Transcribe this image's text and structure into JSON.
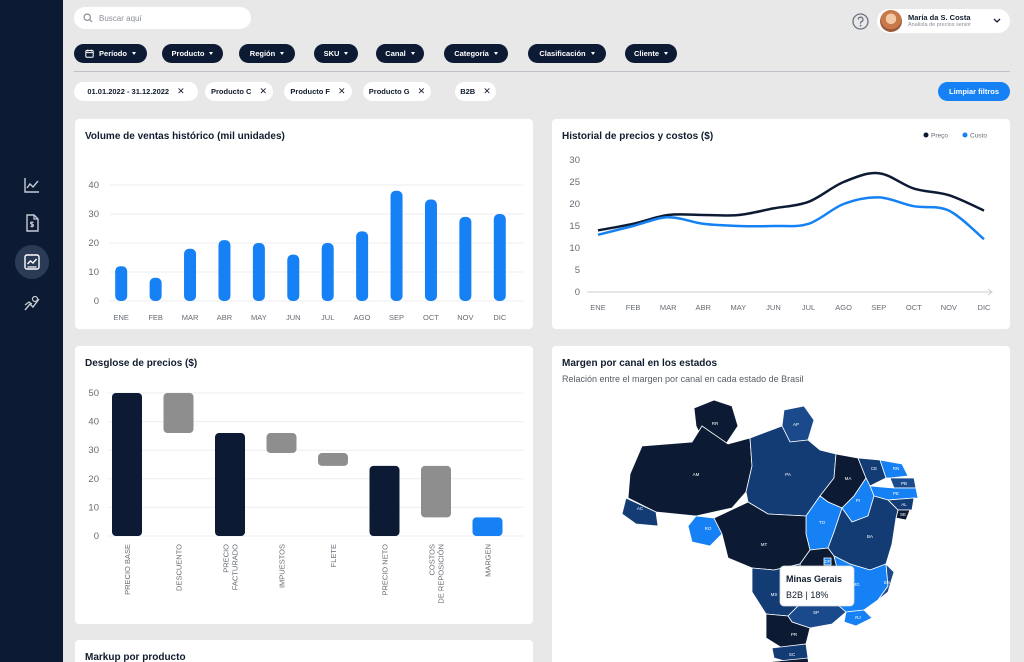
{
  "search": {
    "placeholder": "Buscar aquí",
    "icon": "search-icon"
  },
  "user": {
    "name": "María da S. Costa",
    "role": "Analista de precios senior"
  },
  "sidebar": {
    "items": [
      {
        "icon": "line-chart-icon",
        "active": false
      },
      {
        "icon": "invoice-icon",
        "active": false
      },
      {
        "icon": "trend-chart-icon",
        "active": true
      },
      {
        "icon": "analytics-icon",
        "active": false
      }
    ]
  },
  "filters": [
    "Período",
    "Producto",
    "Región",
    "SKU",
    "Canal",
    "Categoría",
    "Clasificación",
    "Cliente"
  ],
  "chips": [
    "01.01.2022 - 31.12.2022",
    "Producto C",
    "Producto F",
    "Producto G",
    "B2B"
  ],
  "clear_filters": "Limpiar filtros",
  "cards": {
    "volume": {
      "title": "Volume de ventas histórico (mil unidades)"
    },
    "prices": {
      "title": "Historial de precios y costos ($)"
    },
    "breakdown": {
      "title": "Desglose de precios ($)"
    },
    "margin": {
      "title": "Margen por canal en los estados",
      "subtitle": "Relación entre el margen por canal en cada estado de Brasil",
      "tooltip_title": "Minas Gerais",
      "tooltip_value": "B2B | 18%"
    },
    "markup": {
      "title": "Markup por producto"
    }
  },
  "chart_data": [
    {
      "type": "bar",
      "categories": [
        "ENE",
        "FEB",
        "MAR",
        "ABR",
        "MAY",
        "JUN",
        "JUL",
        "AGO",
        "SEP",
        "OCT",
        "NOV",
        "DIC"
      ],
      "values": [
        12,
        8,
        18,
        21,
        20,
        16,
        20,
        24,
        38,
        35,
        29,
        30
      ],
      "ylim": [
        0,
        40
      ],
      "yticks": [
        0,
        10,
        20,
        30,
        40
      ],
      "color": "#1581f5",
      "grid": true
    },
    {
      "type": "line",
      "x": [
        "ENE",
        "FEB",
        "MAR",
        "ABR",
        "MAY",
        "JUN",
        "JUL",
        "AGO",
        "SEP",
        "OCT",
        "NOV",
        "DIC"
      ],
      "series": [
        {
          "name": "Preço",
          "values": [
            14,
            15.5,
            17.5,
            17.5,
            17.5,
            19,
            20.5,
            25,
            27,
            23.5,
            22,
            18.5
          ],
          "color": "#0c1b33"
        },
        {
          "name": "Custo",
          "values": [
            13,
            15,
            17,
            15.5,
            15,
            15,
            15.5,
            20,
            21.5,
            19.5,
            18.5,
            12
          ],
          "color": "#1581f5"
        }
      ],
      "ylim": [
        0,
        30
      ],
      "yticks": [
        0,
        5,
        10,
        15,
        20,
        25,
        30
      ],
      "grid": false,
      "legend": "top-right"
    },
    {
      "type": "bar",
      "subtype": "waterfall",
      "categories": [
        "PRECIO BASE",
        "DESCUENTO",
        "PRECIO FACTURADO",
        "IMPUESTOS",
        "FLETE",
        "PRECIO NETO",
        "COSTOS DE REPOSICIÓN",
        "MARGEN"
      ],
      "bars": [
        {
          "low": 0,
          "high": 50,
          "kind": "total"
        },
        {
          "low": 36,
          "high": 50,
          "kind": "delta"
        },
        {
          "low": 0,
          "high": 36,
          "kind": "total"
        },
        {
          "low": 29,
          "high": 36,
          "kind": "delta"
        },
        {
          "low": 24.5,
          "high": 29,
          "kind": "delta"
        },
        {
          "low": 0,
          "high": 24.5,
          "kind": "total"
        },
        {
          "low": 6.5,
          "high": 24.5,
          "kind": "delta"
        },
        {
          "low": 0,
          "high": 6.5,
          "kind": "result"
        }
      ],
      "colors": {
        "total": "#0c1b33",
        "delta": "#8e8e8e",
        "result": "#1581f5"
      },
      "ylim": [
        0,
        50
      ],
      "yticks": [
        0,
        10,
        20,
        30,
        40,
        50
      ],
      "grid": true
    }
  ],
  "map_states": [
    "RR",
    "AP",
    "AM",
    "PA",
    "MA",
    "CE",
    "RN",
    "PB",
    "PE",
    "AL",
    "SE",
    "PI",
    "AC",
    "RO",
    "TO",
    "BA",
    "MT",
    "GO",
    "DF",
    "MG",
    "ES",
    "MS",
    "SP",
    "RJ",
    "PR",
    "SC",
    "RS"
  ]
}
